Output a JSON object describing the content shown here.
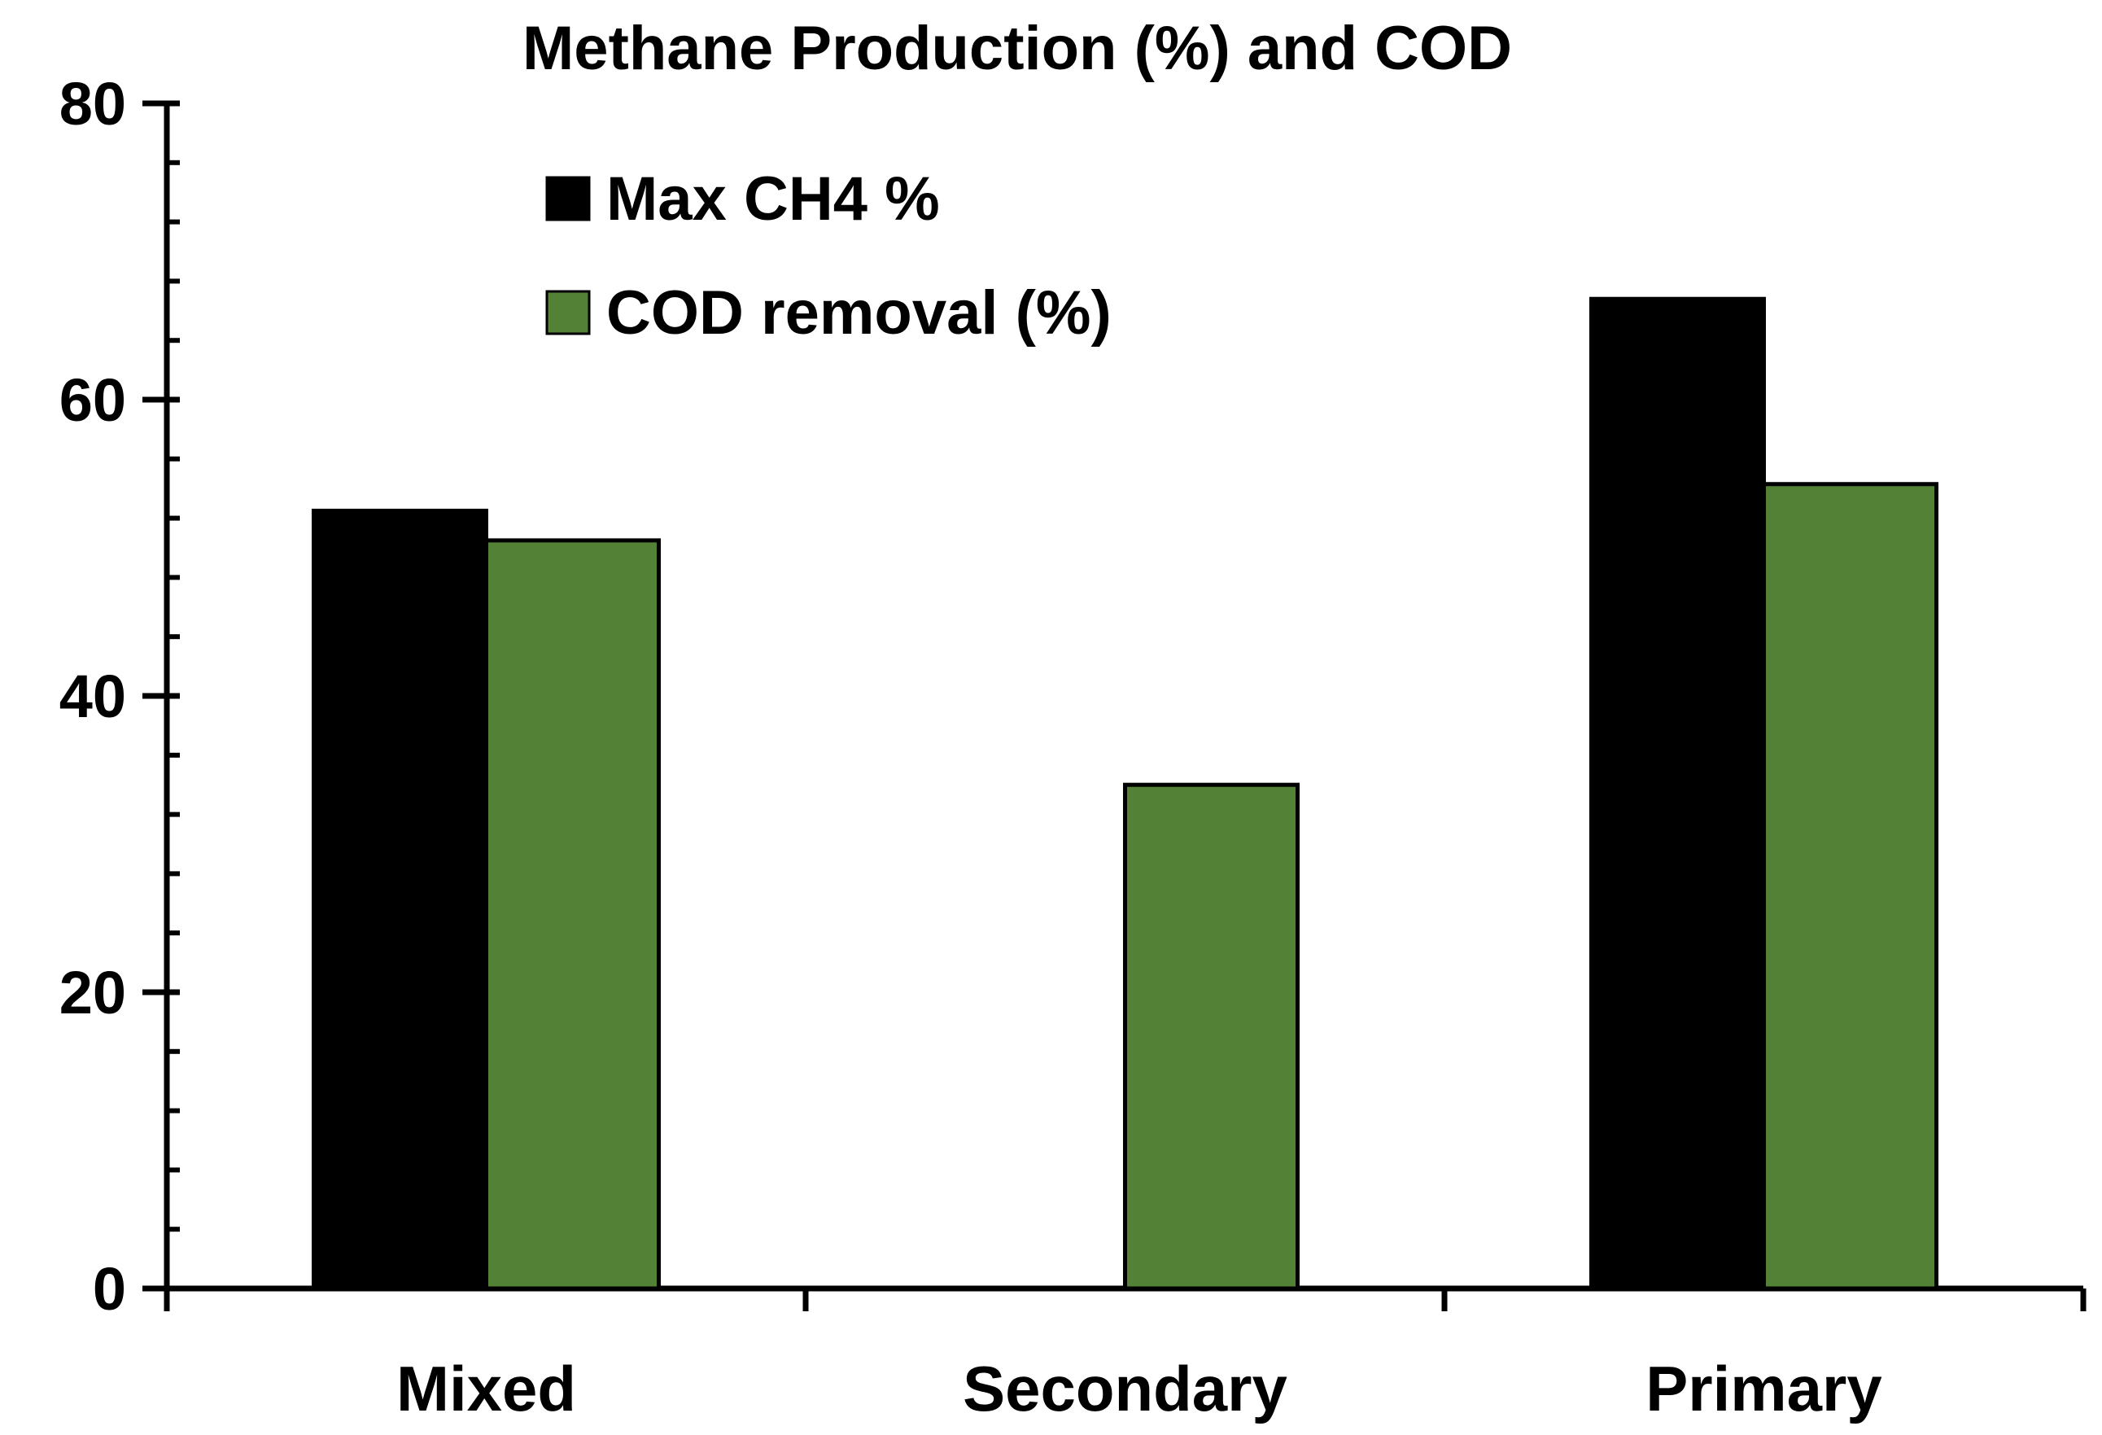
{
  "chart_data": {
    "type": "bar",
    "title": "Methane Production (%) and COD",
    "xlabel": "",
    "ylabel": "",
    "categories": [
      "Mixed",
      "Secondary",
      "Primary"
    ],
    "series": [
      {
        "name": "Max CH4 %",
        "color": "#000000",
        "values": [
          52.5,
          null,
          66.8
        ]
      },
      {
        "name": "COD removal (%)",
        "color": "#538135",
        "values": [
          50.5,
          34.0,
          54.3
        ]
      }
    ],
    "ylim": [
      0,
      80
    ],
    "yticks": [
      0,
      20,
      40,
      60,
      80
    ],
    "y_minor_step": 4,
    "grid": false,
    "legend_position": "top-left"
  }
}
